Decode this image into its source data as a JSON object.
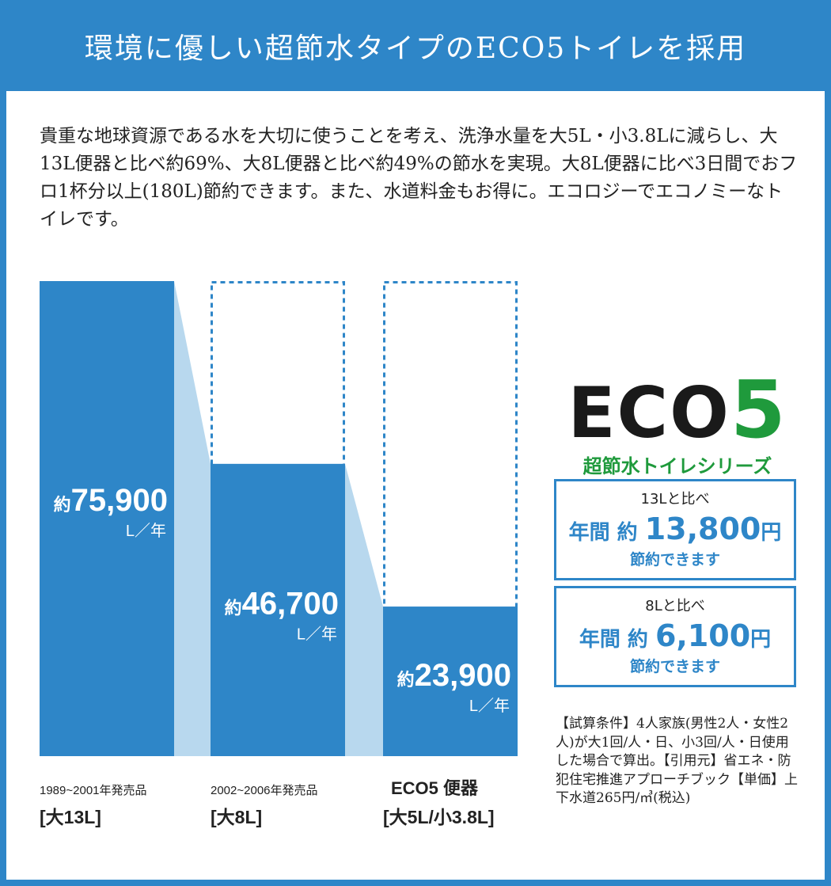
{
  "header": {
    "title": "環境に優しい超節水タイプのECO5トイレを採用"
  },
  "intro": {
    "text": "貴重な地球資源である水を大切に使うことを考え、洗浄水量を大5L・小3.8Lに減らし、大13L便器と比べ約69%、大8L便器と比べ約49%の節水を実現。大8L便器に比べ3日間でおフロ1杯分以上(180L)節約できます。また、水道料金もお得に。エコロジーでエコノミーなトイレです。"
  },
  "colors": {
    "bar": "#2e86c8",
    "connector": "#b8d8ee",
    "green": "#1f9a3c"
  },
  "chart_data": {
    "type": "bar",
    "categories": [
      "大13L",
      "大8L",
      "大5L/小3.8L"
    ],
    "values": [
      75900,
      46700,
      23900
    ],
    "units": "L／年",
    "value_prefix": "約",
    "bars": [
      {
        "top_label": "1989~2001年発売品",
        "bottom_label": "[大13L]",
        "value_text": "75,900",
        "capacity": 75900
      },
      {
        "top_label": "2002~2006年発売品",
        "bottom_label": "[大8L]",
        "value_text": "46,700",
        "capacity": 75900
      },
      {
        "top_label": "ECO5 便器",
        "bottom_label": "[大5L/小3.8L]",
        "value_text": "23,900",
        "capacity": 75900
      }
    ],
    "ylim": [
      0,
      75900
    ]
  },
  "eco5": {
    "logo_main": "ECO",
    "logo_num": "5",
    "subtitle": "超節水トイレシリーズ"
  },
  "savings": [
    {
      "compare": "13Lと比べ",
      "prefix": "年間 約 ",
      "amount": "13,800",
      "unit": "円",
      "note": "節約できます"
    },
    {
      "compare": "8Lと比べ",
      "prefix": "年間 約 ",
      "amount": "6,100",
      "unit": "円",
      "note": "節約できます"
    }
  ],
  "conditions": {
    "text": "【試算条件】4人家族(男性2人・女性2人)が大1回/人・日、小3回/人・日使用した場合で算出。【引用元】省エネ・防犯住宅推進アプローチブック【単価】上下水道265円/㎥(税込)"
  }
}
